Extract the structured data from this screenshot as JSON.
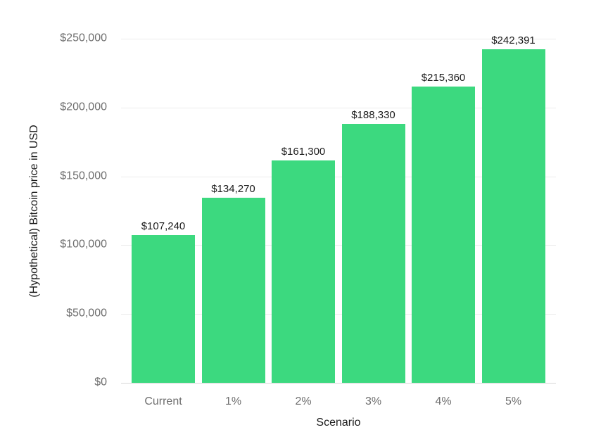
{
  "chart_data": {
    "type": "bar",
    "title": "",
    "xlabel": "Scenario",
    "ylabel": "(Hypothetical) Bitcoin price in USD",
    "categories": [
      "Current",
      "1%",
      "2%",
      "3%",
      "4%",
      "5%"
    ],
    "values": [
      107240,
      134270,
      161300,
      188330,
      215360,
      242391
    ],
    "value_labels": [
      "$107,240",
      "$134,270",
      "$161,300",
      "$188,330",
      "$215,360",
      "$242,391"
    ],
    "ylim": [
      0,
      250000
    ],
    "ytick_interval": 50000,
    "ytick_labels": [
      "$0",
      "$50,000",
      "$100,000",
      "$150,000",
      "$200,000",
      "$250,000"
    ],
    "grid": "horizontal-only",
    "legend": "none",
    "colors": {
      "bar": "#3CD97F",
      "tick_text": "#6e6e6e",
      "data_label_text": "#1b1b1b",
      "axis_title_text": "#1b1b1b",
      "gridline": "#ebebeb",
      "baseline": "#d7d7d7",
      "background": "#ffffff"
    }
  }
}
